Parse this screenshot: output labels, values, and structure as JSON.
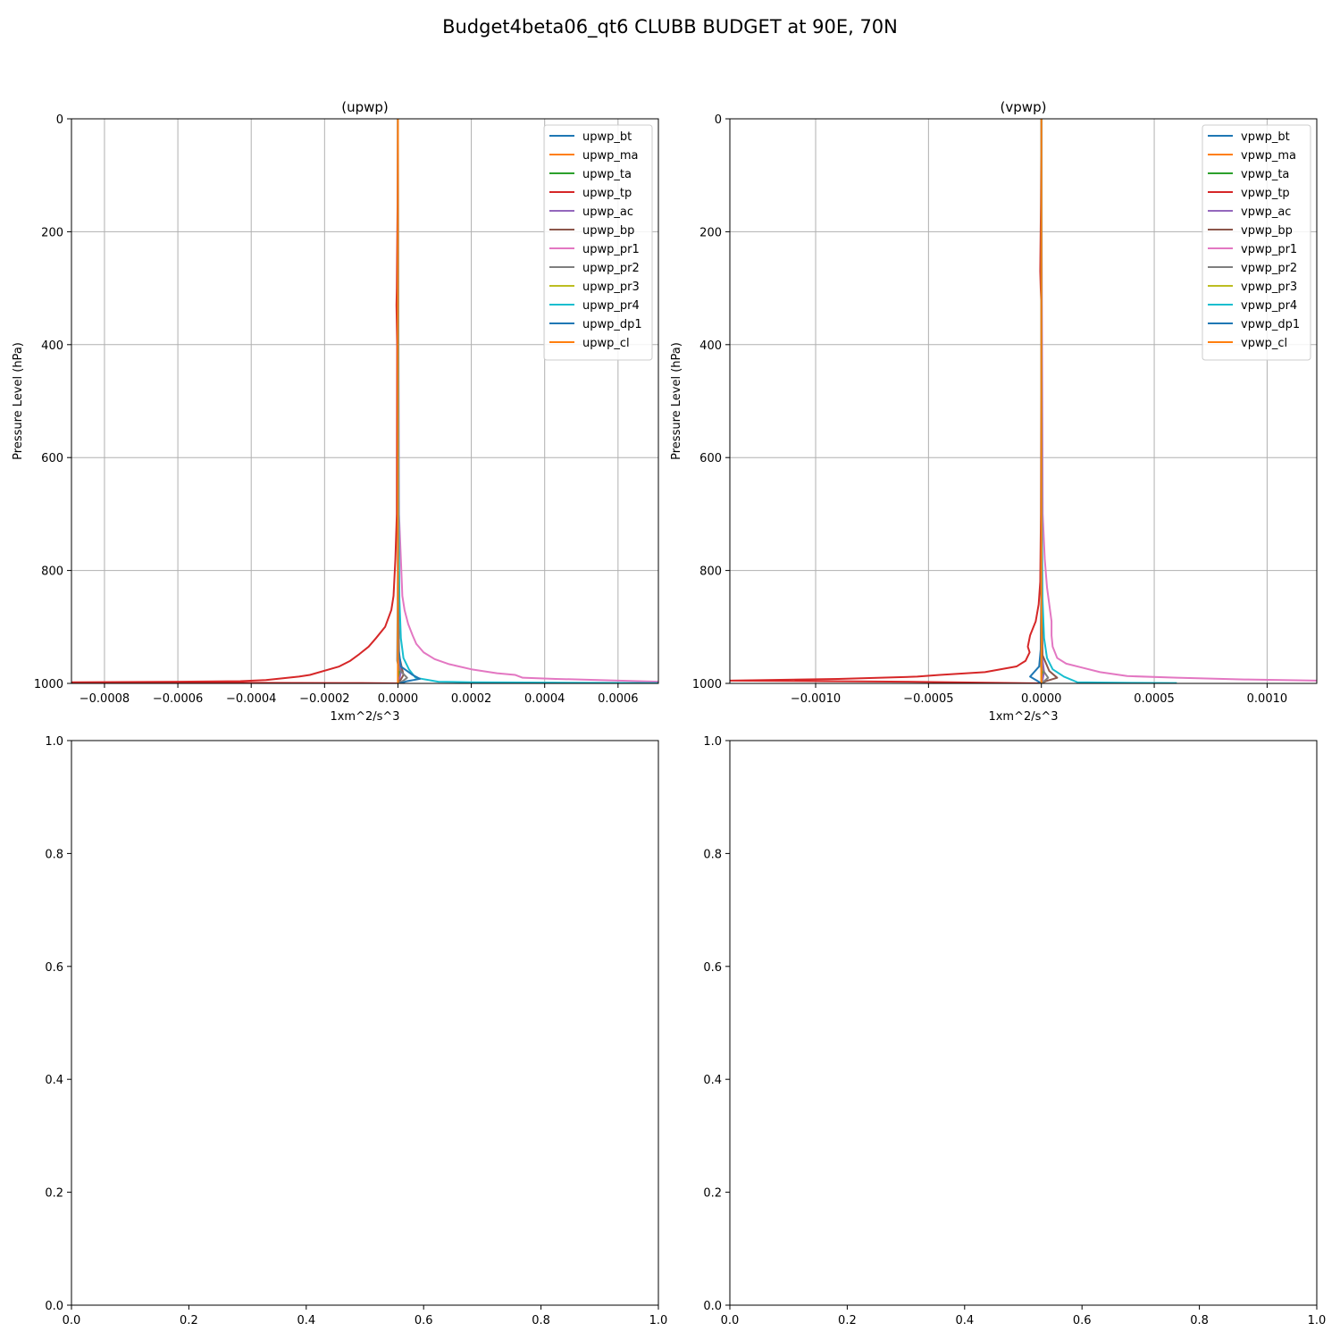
{
  "figure": {
    "title": "Budget4beta06_qt6 CLUBB BUDGET at 90E, 70N"
  },
  "chart_data": [
    {
      "type": "line",
      "title": "(upwp)",
      "xlabel": "1xm^2/s^3",
      "ylabel": "Pressure Level (hPa)",
      "xlim": [
        -0.00089,
        0.00071
      ],
      "ylim": [
        1000,
        0
      ],
      "x_ticks": [
        -0.0008,
        -0.0006,
        -0.0004,
        -0.0002,
        0.0,
        0.0002,
        0.0004,
        0.0006
      ],
      "x_tick_labels": [
        "−0.0008",
        "−0.0006",
        "−0.0004",
        "−0.0002",
        "0.0000",
        "0.0002",
        "0.0004",
        "0.0006"
      ],
      "y_ticks": [
        0,
        200,
        400,
        600,
        800,
        1000
      ],
      "y_tick_labels": [
        "0",
        "200",
        "400",
        "600",
        "800",
        "1000"
      ],
      "grid": true,
      "legend_position": "top-right",
      "series": [
        {
          "name": "upwp_bt",
          "color": "#1f77b4",
          "x": [
            0,
            0,
            0,
            2e-06,
            5e-06,
            3e-06,
            1e-06
          ],
          "y": [
            0,
            700,
            940,
            970,
            985,
            993,
            1000
          ]
        },
        {
          "name": "upwp_ma",
          "color": "#ff7f0e",
          "x": [
            0,
            0,
            0
          ],
          "y": [
            0,
            900,
            1000
          ]
        },
        {
          "name": "upwp_ta",
          "color": "#2ca02c",
          "x": [
            0,
            0,
            2e-06,
            4e-06,
            2e-06,
            0
          ],
          "y": [
            0,
            850,
            960,
            985,
            995,
            1000
          ]
        },
        {
          "name": "upwp_tp",
          "color": "#d62728",
          "x": [
            0,
            -1e-06,
            -3e-06,
            -4e-06,
            -2e-06,
            -3e-06,
            -7e-06,
            -1.2e-05,
            -1.8e-05,
            -3.5e-05,
            -6e-05,
            -8e-05,
            -0.000105,
            -0.00013,
            -0.00016,
            -0.00024,
            -0.00027,
            -0.00036,
            -0.00043,
            -0.0006,
            -0.00089,
            -0.0004,
            -0.0001,
            0
          ],
          "y": [
            0,
            150,
            300,
            330,
            400,
            700,
            780,
            845,
            870,
            900,
            920,
            935,
            948,
            960,
            970,
            985,
            988,
            994,
            996,
            997,
            998,
            999,
            999.5,
            1000
          ]
        },
        {
          "name": "upwp_ac",
          "color": "#9467bd",
          "x": [
            0,
            0,
            2e-06,
            8e-06,
            4e-06,
            0
          ],
          "y": [
            0,
            800,
            950,
            980,
            993,
            1000
          ]
        },
        {
          "name": "upwp_bp",
          "color": "#8c564b",
          "x": [
            0,
            0,
            3e-06,
            1.5e-05,
            8e-06,
            0
          ],
          "y": [
            0,
            800,
            950,
            985,
            993,
            1000
          ]
        },
        {
          "name": "upwp_pr1",
          "color": "#e377c2",
          "x": [
            0,
            1e-06,
            3e-06,
            8e-06,
            1.2e-05,
            1.8e-05,
            2.8e-05,
            4e-05,
            5e-05,
            7e-05,
            0.0001,
            0.00014,
            0.0002,
            0.00027,
            0.00032,
            0.00034,
            0.00043,
            0.0006,
            0.00071
          ],
          "y": [
            0,
            300,
            700,
            780,
            845,
            870,
            895,
            915,
            930,
            945,
            957,
            966,
            975,
            982,
            985,
            990,
            992,
            995,
            997
          ]
        },
        {
          "name": "upwp_pr2",
          "color": "#7f7f7f",
          "x": [
            0,
            0,
            -2e-06,
            3e-06,
            2.5e-05,
            1.5e-05,
            0
          ],
          "y": [
            0,
            800,
            960,
            975,
            990,
            995,
            1000
          ]
        },
        {
          "name": "upwp_pr3",
          "color": "#bcbd22",
          "x": [
            0,
            0,
            0,
            0
          ],
          "y": [
            0,
            500,
            900,
            1000
          ]
        },
        {
          "name": "upwp_pr4",
          "color": "#17becf",
          "x": [
            0,
            2e-06,
            4e-06,
            8e-06,
            1.5e-05,
            3e-05,
            4.8e-05,
            0.00011,
            0.0002,
            0.00035,
            0.00055,
            0.00071
          ],
          "y": [
            0,
            700,
            850,
            920,
            955,
            975,
            990,
            997,
            998,
            998.5,
            999,
            999.5
          ]
        },
        {
          "name": "upwp_dp1",
          "color": "#1f77b4",
          "x": [
            0,
            0,
            2e-06,
            8e-06,
            4e-05,
            6e-05,
            2.5e-05,
            5e-06
          ],
          "y": [
            0,
            800,
            940,
            970,
            985,
            992,
            996,
            1000
          ]
        },
        {
          "name": "upwp_cl",
          "color": "#ff7f0e",
          "x": [
            0,
            0,
            0
          ],
          "y": [
            0,
            500,
            1000
          ]
        }
      ]
    },
    {
      "type": "line",
      "title": "(vpwp)",
      "xlabel": "1xm^2/s^3",
      "ylabel": "Pressure Level (hPa)",
      "xlim": [
        -0.00138,
        0.00122
      ],
      "ylim": [
        1000,
        0
      ],
      "x_ticks": [
        -0.001,
        -0.0005,
        0.0,
        0.0005,
        0.001
      ],
      "x_tick_labels": [
        "−0.0010",
        "−0.0005",
        "0.0000",
        "0.0005",
        "0.0010"
      ],
      "y_ticks": [
        0,
        200,
        400,
        600,
        800,
        1000
      ],
      "y_tick_labels": [
        "0",
        "200",
        "400",
        "600",
        "800",
        "1000"
      ],
      "grid": true,
      "legend_position": "top-right",
      "series": [
        {
          "name": "vpwp_bt",
          "color": "#1f77b4",
          "x": [
            0,
            0,
            0,
            -2e-06,
            3e-06,
            1e-06,
            0
          ],
          "y": [
            0,
            700,
            940,
            970,
            985,
            993,
            1000
          ]
        },
        {
          "name": "vpwp_ma",
          "color": "#ff7f0e",
          "x": [
            0,
            0,
            0
          ],
          "y": [
            0,
            900,
            1000
          ]
        },
        {
          "name": "vpwp_ta",
          "color": "#2ca02c",
          "x": [
            0,
            0,
            3e-06,
            8e-06,
            3e-06,
            0
          ],
          "y": [
            0,
            850,
            960,
            985,
            995,
            1000
          ]
        },
        {
          "name": "vpwp_tp",
          "color": "#d62728",
          "x": [
            0,
            -2e-06,
            -5e-06,
            -3e-06,
            0,
            -2e-06,
            -5e-06,
            -1.2e-05,
            -2.5e-05,
            -5e-05,
            -5.5e-05,
            -6e-05,
            -5.2e-05,
            -7e-05,
            -0.00011,
            -0.00025,
            -0.00045,
            -0.00055,
            -0.0009,
            -0.00138,
            -0.0006,
            -0.0002,
            0
          ],
          "y": [
            0,
            150,
            270,
            300,
            330,
            700,
            820,
            860,
            890,
            915,
            925,
            935,
            945,
            960,
            970,
            980,
            985,
            988,
            992,
            995,
            997,
            999,
            1000
          ]
        },
        {
          "name": "vpwp_ac",
          "color": "#9467bd",
          "x": [
            0,
            0,
            3e-06,
            1.2e-05,
            6e-06,
            0
          ],
          "y": [
            0,
            800,
            950,
            980,
            993,
            1000
          ]
        },
        {
          "name": "vpwp_bp",
          "color": "#8c564b",
          "x": [
            0,
            0,
            5e-06,
            3.5e-05,
            7e-05,
            2e-05,
            0
          ],
          "y": [
            0,
            800,
            950,
            978,
            990,
            996,
            1000
          ]
        },
        {
          "name": "vpwp_pr1",
          "color": "#e377c2",
          "x": [
            0,
            2e-06,
            6e-06,
            1.5e-05,
            2.5e-05,
            3.5e-05,
            4.5e-05,
            4.5e-05,
            5e-05,
            7e-05,
            0.00011,
            0.00018,
            0.00026,
            0.00038,
            0.0006,
            0.0009,
            0.00122
          ],
          "y": [
            0,
            300,
            700,
            780,
            830,
            860,
            890,
            915,
            935,
            955,
            965,
            972,
            980,
            987,
            990,
            993,
            995
          ]
        },
        {
          "name": "vpwp_pr2",
          "color": "#7f7f7f",
          "x": [
            0,
            0,
            -2e-06,
            4e-06,
            3e-05,
            1.5e-05,
            0
          ],
          "y": [
            0,
            800,
            960,
            975,
            990,
            995,
            1000
          ]
        },
        {
          "name": "vpwp_pr3",
          "color": "#bcbd22",
          "x": [
            0,
            0,
            0,
            0
          ],
          "y": [
            0,
            500,
            900,
            1000
          ]
        },
        {
          "name": "vpwp_pr4",
          "color": "#17becf",
          "x": [
            0,
            2e-06,
            5e-06,
            1.2e-05,
            2.5e-05,
            5e-05,
            0.0001,
            0.00016,
            0.00025,
            0.0004,
            0.0006
          ],
          "y": [
            0,
            700,
            850,
            920,
            955,
            975,
            988,
            998,
            998.5,
            999,
            999.5
          ]
        },
        {
          "name": "vpwp_dp1",
          "color": "#1f77b4",
          "x": [
            0,
            0,
            -3e-06,
            -1e-05,
            -5e-05,
            -2e-05,
            0
          ],
          "y": [
            0,
            800,
            940,
            970,
            988,
            995,
            1000
          ]
        },
        {
          "name": "vpwp_cl",
          "color": "#ff7f0e",
          "x": [
            0,
            0,
            0
          ],
          "y": [
            0,
            500,
            1000
          ]
        }
      ]
    },
    {
      "type": "line",
      "title": "",
      "xlim": [
        0,
        1
      ],
      "ylim": [
        0,
        1
      ],
      "x_ticks": [
        0,
        0.2,
        0.4,
        0.6,
        0.8,
        1.0
      ],
      "x_tick_labels": [
        "0.0",
        "0.2",
        "0.4",
        "0.6",
        "0.8",
        "1.0"
      ],
      "y_ticks": [
        0,
        0.2,
        0.4,
        0.6,
        0.8,
        1.0
      ],
      "y_tick_labels": [
        "0.0",
        "0.2",
        "0.4",
        "0.6",
        "0.8",
        "1.0"
      ],
      "grid": false,
      "series": []
    },
    {
      "type": "line",
      "title": "",
      "xlim": [
        0,
        1
      ],
      "ylim": [
        0,
        1
      ],
      "x_ticks": [
        0,
        0.2,
        0.4,
        0.6,
        0.8,
        1.0
      ],
      "x_tick_labels": [
        "0.0",
        "0.2",
        "0.4",
        "0.6",
        "0.8",
        "1.0"
      ],
      "y_ticks": [
        0,
        0.2,
        0.4,
        0.6,
        0.8,
        1.0
      ],
      "y_tick_labels": [
        "0.0",
        "0.2",
        "0.4",
        "0.6",
        "0.8",
        "1.0"
      ],
      "grid": false,
      "series": []
    }
  ]
}
